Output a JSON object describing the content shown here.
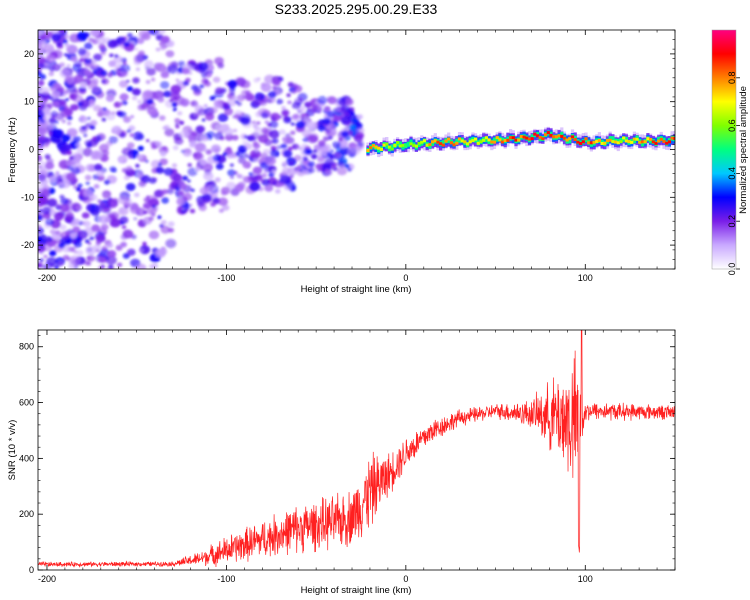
{
  "title": "S233.2025.295.00.29.E33",
  "chart_data": [
    {
      "type": "heatmap",
      "name": "spectrogram",
      "xlabel": "Height of straight line (km)",
      "ylabel": "Frequency (Hz)",
      "xlim": [
        -205,
        150
      ],
      "ylim": [
        -25,
        25
      ],
      "xticks": [
        -200,
        -100,
        0,
        100
      ],
      "yticks": [
        -20,
        -10,
        0,
        10,
        20
      ],
      "colorbar": {
        "label": "Normalized spectral amplitude",
        "range": [
          0,
          1
        ],
        "ticks": [
          "0.0",
          "0.2",
          "0.4",
          "0.6",
          "0.8"
        ],
        "tick_values": [
          0.0,
          0.2,
          0.4,
          0.6,
          0.8
        ],
        "colors": [
          "#ffffff",
          "#c9a9ff",
          "#7a1ee8",
          "#0000ff",
          "#00c8ff",
          "#00ff80",
          "#80ff00",
          "#ffff00",
          "#ff8000",
          "#ff0000",
          "#ff0080"
        ]
      },
      "ridge": [
        {
          "x": -20,
          "freq": 0.2,
          "amp": 0.85
        },
        {
          "x": 0,
          "freq": 1.0,
          "amp": 0.6
        },
        {
          "x": 20,
          "freq": 1.5,
          "amp": 0.95
        },
        {
          "x": 40,
          "freq": 1.8,
          "amp": 0.7
        },
        {
          "x": 60,
          "freq": 2.2,
          "amp": 0.95
        },
        {
          "x": 80,
          "freq": 3.0,
          "amp": 0.9
        },
        {
          "x": 100,
          "freq": 1.5,
          "amp": 0.95
        },
        {
          "x": 120,
          "freq": 1.8,
          "amp": 0.7
        },
        {
          "x": 140,
          "freq": 1.8,
          "amp": 0.95
        }
      ]
    },
    {
      "type": "line",
      "name": "snr",
      "xlabel": "Height of straight line (km)",
      "ylabel": "SNR (10 * v/v)",
      "xlim": [
        -205,
        150
      ],
      "ylim": [
        0,
        860
      ],
      "xticks": [
        -200,
        -100,
        0,
        100
      ],
      "yticks": [
        0,
        200,
        400,
        600,
        800
      ],
      "color": "#ff2020",
      "envelope": [
        {
          "x": -205,
          "mean": 20,
          "amp": 10
        },
        {
          "x": -130,
          "mean": 22,
          "amp": 10
        },
        {
          "x": -115,
          "mean": 40,
          "amp": 30
        },
        {
          "x": -100,
          "mean": 70,
          "amp": 60
        },
        {
          "x": -80,
          "mean": 110,
          "amp": 80
        },
        {
          "x": -60,
          "mean": 150,
          "amp": 100
        },
        {
          "x": -40,
          "mean": 170,
          "amp": 110
        },
        {
          "x": -30,
          "mean": 190,
          "amp": 120
        },
        {
          "x": -20,
          "mean": 280,
          "amp": 160
        },
        {
          "x": -10,
          "mean": 340,
          "amp": 90
        },
        {
          "x": 0,
          "mean": 420,
          "amp": 70
        },
        {
          "x": 15,
          "mean": 500,
          "amp": 50
        },
        {
          "x": 30,
          "mean": 545,
          "amp": 35
        },
        {
          "x": 50,
          "mean": 570,
          "amp": 30
        },
        {
          "x": 70,
          "mean": 560,
          "amp": 60
        },
        {
          "x": 85,
          "mean": 550,
          "amp": 180
        },
        {
          "x": 95,
          "mean": 520,
          "amp": 300
        },
        {
          "x": 100,
          "mean": 570,
          "amp": 40
        },
        {
          "x": 150,
          "mean": 565,
          "amp": 30
        }
      ],
      "dip": {
        "x": 96.5,
        "value": 60
      },
      "peak": {
        "x": 98,
        "value": 860
      }
    }
  ]
}
